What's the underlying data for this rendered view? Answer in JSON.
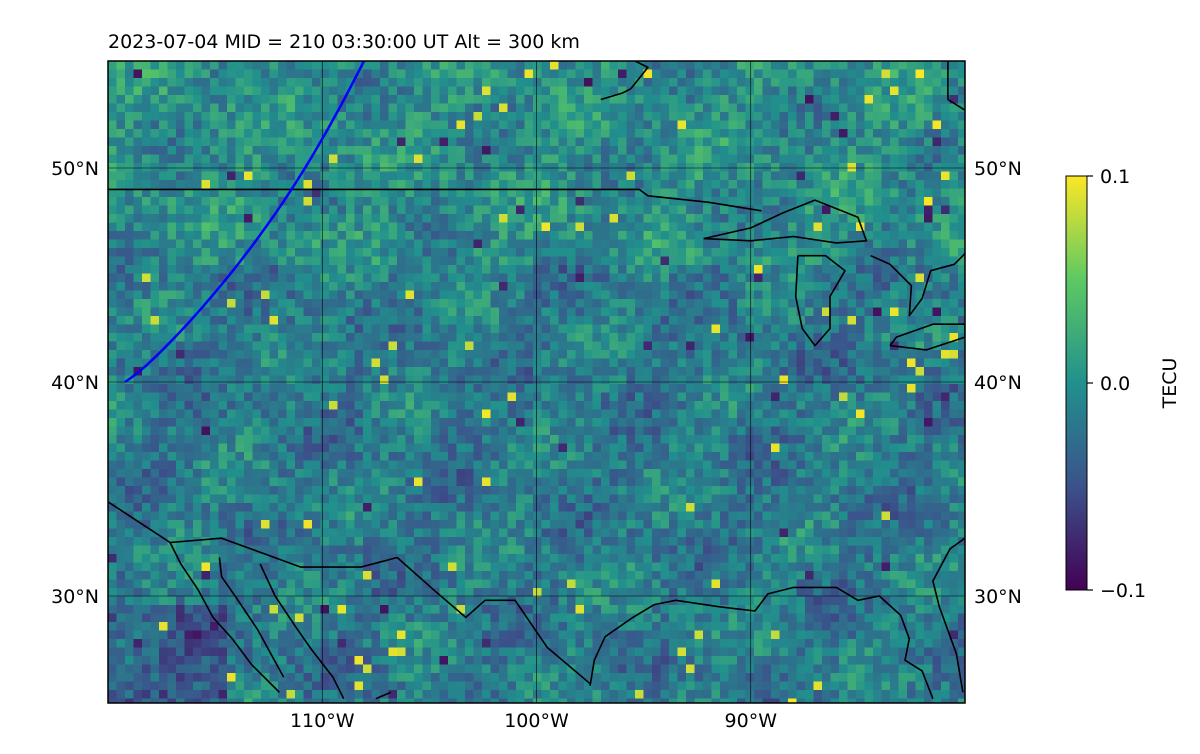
{
  "title": "2023-07-04  MID = 210    03:30:00  UT  Alt = 300 km",
  "map": {
    "lon_range": [
      -120,
      -80
    ],
    "lat_range": [
      25,
      55
    ],
    "lon_ticks": [
      {
        "value": -110,
        "label": "110°W"
      },
      {
        "value": -100,
        "label": "100°W"
      },
      {
        "value": -90,
        "label": "90°W"
      }
    ],
    "lat_ticks": [
      {
        "value": 50,
        "label": "50°N"
      },
      {
        "value": 40,
        "label": "40°N"
      },
      {
        "value": 30,
        "label": "30°N"
      }
    ],
    "track_color": "#0000ff",
    "coast_color": "#000000"
  },
  "colorbar": {
    "label": "TECU",
    "ticks": [
      {
        "value": 0.1,
        "label": "0.1"
      },
      {
        "value": 0.0,
        "label": "0.0"
      },
      {
        "value": -0.1,
        "label": "−0.1"
      }
    ],
    "range": [
      -0.1,
      0.1
    ],
    "colormap": "viridis",
    "colors": [
      "#440154",
      "#3b528b",
      "#21908d",
      "#5dc963",
      "#fde725"
    ]
  }
}
